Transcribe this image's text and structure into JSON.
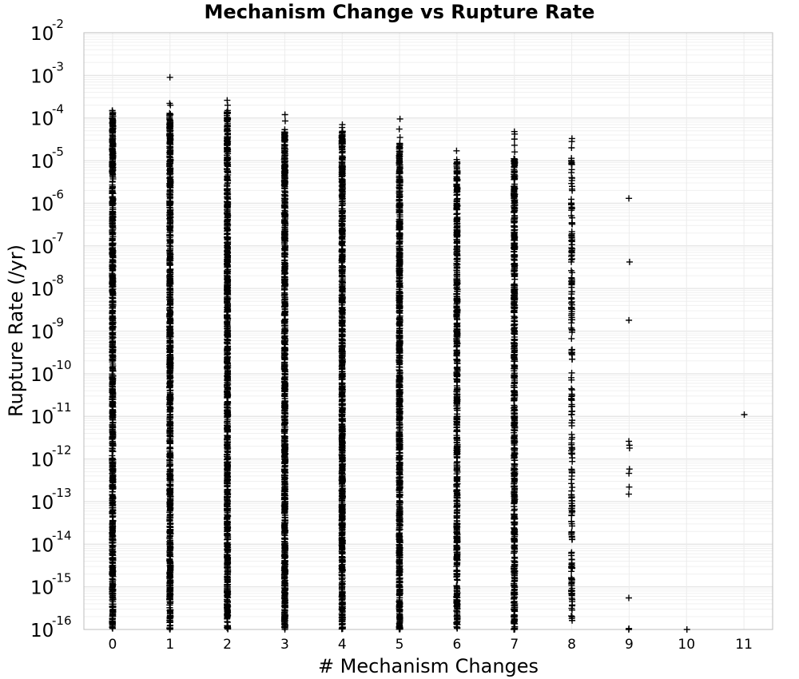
{
  "chart_data": {
    "type": "scatter",
    "title": "Mechanism Change vs Rupture Rate",
    "xlabel": "# Mechanism Changes",
    "ylabel": "Rupture Rate (/yr)",
    "y_scale": "log",
    "xlim": [
      -0.5,
      11.5
    ],
    "ylim": [
      1e-16,
      0.01
    ],
    "x_ticks": [
      "0",
      "1",
      "2",
      "3",
      "4",
      "5",
      "6",
      "7",
      "8",
      "9",
      "10",
      "11"
    ],
    "y_ticks": [
      {
        "base": "10",
        "exp": "-16"
      },
      {
        "base": "10",
        "exp": "-15"
      },
      {
        "base": "10",
        "exp": "-14"
      },
      {
        "base": "10",
        "exp": "-13"
      },
      {
        "base": "10",
        "exp": "-12"
      },
      {
        "base": "10",
        "exp": "-11"
      },
      {
        "base": "10",
        "exp": "-10"
      },
      {
        "base": "10",
        "exp": "-9"
      },
      {
        "base": "10",
        "exp": "-8"
      },
      {
        "base": "10",
        "exp": "-7"
      },
      {
        "base": "10",
        "exp": "-6"
      },
      {
        "base": "10",
        "exp": "-5"
      },
      {
        "base": "10",
        "exp": "-4"
      },
      {
        "base": "10",
        "exp": "-3"
      },
      {
        "base": "10",
        "exp": "-2"
      }
    ],
    "grid": true,
    "marker": "+",
    "marker_color": "#000000",
    "series": [
      {
        "columns": [
          {
            "x": 0,
            "y_min": 1e-16,
            "y_max": 0.00015,
            "density": "dense",
            "outliers": [
              0.00012,
              0.00015
            ]
          },
          {
            "x": 1,
            "y_min": 1e-16,
            "y_max": 0.00013,
            "density": "dense",
            "outliers": [
              0.0009,
              0.00022,
              0.0002,
              0.00012,
              7e-05
            ]
          },
          {
            "x": 2,
            "y_min": 1e-16,
            "y_max": 0.00014,
            "density": "dense",
            "outliers": [
              0.00026,
              0.0002,
              0.00015
            ]
          },
          {
            "x": 3,
            "y_min": 1e-16,
            "y_max": 6e-05,
            "density": "dense",
            "outliers": [
              0.00012,
              8.5e-05
            ]
          },
          {
            "x": 4,
            "y_min": 1e-16,
            "y_max": 5e-05,
            "density": "dense",
            "outliers": [
              7e-05,
              6e-05,
              3.5e-05
            ]
          },
          {
            "x": 5,
            "y_min": 1e-16,
            "y_max": 3e-05,
            "density": "dense",
            "outliers": [
              9.5e-05,
              5.5e-05,
              3.5e-05,
              2.5e-05
            ]
          },
          {
            "x": 6,
            "y_min": 1e-16,
            "y_max": 1.1e-05,
            "density": "medium",
            "outliers": [
              1.7e-05
            ]
          },
          {
            "x": 7,
            "y_min": 1e-16,
            "y_max": 1.2e-05,
            "density": "medium",
            "outliers": [
              4.8e-05,
              4.2e-05,
              3.2e-05,
              2.3e-05,
              1.6e-05
            ]
          },
          {
            "x": 8,
            "y_min": 1e-16,
            "y_max": 1.2e-05,
            "density": "sparse",
            "outliers": [
              3.3e-05,
              2.8e-05,
              2e-05
            ]
          },
          {
            "x": 9,
            "y_min": null,
            "y_max": null,
            "density": "none",
            "outliers": [
              1.3e-06,
              4.2e-08,
              1.8e-09,
              2.6e-12,
              2.1e-12,
              1.8e-12,
              5.8e-13,
              4.6e-13,
              2.2e-13,
              1.5e-13,
              5.5e-16,
              1.05e-16,
              1e-16
            ]
          },
          {
            "x": 10,
            "y_min": null,
            "y_max": null,
            "density": "none",
            "outliers": [
              1e-16
            ]
          },
          {
            "x": 11,
            "y_min": null,
            "y_max": null,
            "density": "none",
            "outliers": [
              1.1e-11
            ]
          }
        ]
      }
    ]
  }
}
